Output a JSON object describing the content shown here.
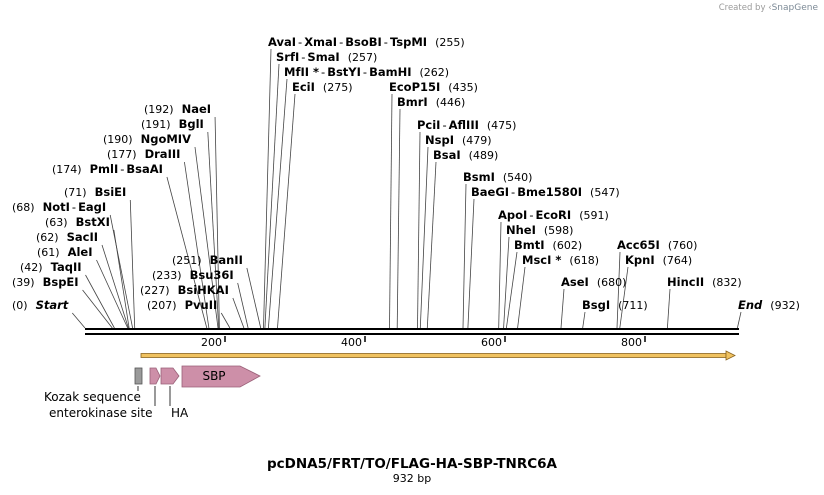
{
  "credit": {
    "prefix": "Created by",
    "brand": "SnapGene"
  },
  "title": "pcDNA5/FRT/TO/FLAG-HA-SBP-TNRC6A",
  "subtitle": "932 bp",
  "sequence_length": 932,
  "ruler_ticks": [
    "200",
    "400",
    "600",
    "800"
  ],
  "sites": [
    {
      "labels": [
        "Start"
      ],
      "position": "(0)",
      "bp": 0,
      "italic": true,
      "pos_first": true
    },
    {
      "labels": [
        "BspEI"
      ],
      "position": "(39)",
      "bp": 39,
      "pos_first": true
    },
    {
      "labels": [
        "TaqII"
      ],
      "position": "(42)",
      "bp": 42,
      "pos_first": true
    },
    {
      "labels": [
        "AleI"
      ],
      "position": "(61)",
      "bp": 61,
      "pos_first": true
    },
    {
      "labels": [
        "SacII"
      ],
      "position": "(62)",
      "bp": 62,
      "pos_first": true
    },
    {
      "labels": [
        "BstXI"
      ],
      "position": "(63)",
      "bp": 63,
      "pos_first": true
    },
    {
      "labels": [
        "NotI",
        "EagI"
      ],
      "position": "(68)",
      "bp": 68,
      "pos_first": true
    },
    {
      "labels": [
        "BsiEI"
      ],
      "position": "(71)",
      "bp": 71,
      "pos_first": true
    },
    {
      "labels": [
        "PmlI",
        "BsaAI"
      ],
      "position": "(174)",
      "bp": 174,
      "pos_first": true
    },
    {
      "labels": [
        "DraIII"
      ],
      "position": "(177)",
      "bp": 177,
      "pos_first": true
    },
    {
      "labels": [
        "NgoMIV"
      ],
      "position": "(190)",
      "bp": 190,
      "pos_first": true
    },
    {
      "labels": [
        "BglI"
      ],
      "position": "(191)",
      "bp": 191,
      "pos_first": true
    },
    {
      "labels": [
        "NaeI"
      ],
      "position": "(192)",
      "bp": 192,
      "pos_first": true
    },
    {
      "labels": [
        "PvuII"
      ],
      "position": "(207)",
      "bp": 207,
      "pos_first": true
    },
    {
      "labels": [
        "BsiHKAI"
      ],
      "position": "(227)",
      "bp": 227,
      "pos_first": true
    },
    {
      "labels": [
        "Bsu36I"
      ],
      "position": "(233)",
      "bp": 233,
      "pos_first": true
    },
    {
      "labels": [
        "BanII"
      ],
      "position": "(251)",
      "bp": 251,
      "pos_first": true
    },
    {
      "labels": [
        "AvaI",
        "XmaI",
        "BsoBI",
        "TspMI"
      ],
      "position": "(255)",
      "bp": 255
    },
    {
      "labels": [
        "SrfI",
        "SmaI"
      ],
      "position": "(257)",
      "bp": 257
    },
    {
      "labels": [
        "MfII *",
        "BstYI",
        "BamHI"
      ],
      "position": "(262)",
      "bp": 262
    },
    {
      "labels": [
        "EciI"
      ],
      "position": "(275)",
      "bp": 275
    },
    {
      "labels": [
        "EcoP15I"
      ],
      "position": "(435)",
      "bp": 435
    },
    {
      "labels": [
        "BmrI"
      ],
      "position": "(446)",
      "bp": 446
    },
    {
      "labels": [
        "PciI",
        "AflIII"
      ],
      "position": "(475)",
      "bp": 475
    },
    {
      "labels": [
        "NspI"
      ],
      "position": "(479)",
      "bp": 479
    },
    {
      "labels": [
        "BsaI"
      ],
      "position": "(489)",
      "bp": 489
    },
    {
      "labels": [
        "BsmI"
      ],
      "position": "(540)",
      "bp": 540
    },
    {
      "labels": [
        "BaeGI",
        "Bme1580I"
      ],
      "position": "(547)",
      "bp": 547
    },
    {
      "labels": [
        "ApoI",
        "EcoRI"
      ],
      "position": "(591)",
      "bp": 591
    },
    {
      "labels": [
        "NheI"
      ],
      "position": "(598)",
      "bp": 598
    },
    {
      "labels": [
        "BmtI"
      ],
      "position": "(602)",
      "bp": 602
    },
    {
      "labels": [
        "MscI *"
      ],
      "position": "(618)",
      "bp": 618
    },
    {
      "labels": [
        "AseI"
      ],
      "position": "(680)",
      "bp": 680
    },
    {
      "labels": [
        "BsgI"
      ],
      "position": "(711)",
      "bp": 711
    },
    {
      "labels": [
        "Acc65I"
      ],
      "position": "(760)",
      "bp": 760
    },
    {
      "labels": [
        "KpnI"
      ],
      "position": "(764)",
      "bp": 764
    },
    {
      "labels": [
        "HincII"
      ],
      "position": "(832)",
      "bp": 832
    },
    {
      "labels": [
        "End"
      ],
      "position": "(932)",
      "bp": 932,
      "italic": true
    }
  ],
  "features": {
    "sbp_label": "SBP",
    "kozak_label": "Kozak sequence",
    "enterokinase_label": "enterokinase site",
    "ha_label": "HA"
  },
  "colors": {
    "orf_arrow": "#f0c260",
    "orf_arrow_dark": "#8a6420",
    "feature_pink": "#cd8fa8",
    "feature_pink_dark": "#9a6078",
    "kozak_gray": "#9a9a9a"
  }
}
